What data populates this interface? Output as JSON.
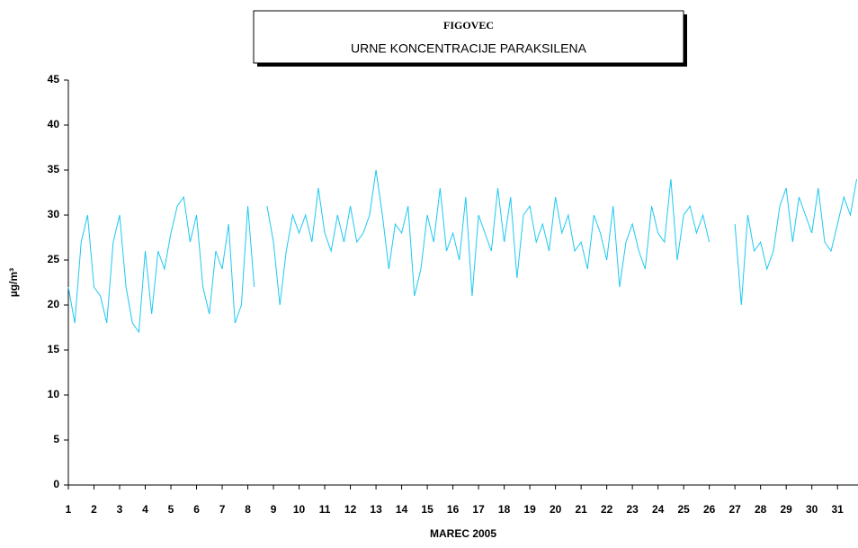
{
  "chart_data": {
    "type": "line",
    "title": "FIGOVEC",
    "subtitle": "URNE KONCENTRACIJE PARAKSILENA",
    "x_label": "MAREC 2005",
    "y_label": "µg/m³",
    "xlim": [
      1,
      31.8
    ],
    "ylim": [
      0,
      45
    ],
    "xticks": [
      1,
      2,
      3,
      4,
      5,
      6,
      7,
      8,
      9,
      10,
      11,
      12,
      13,
      14,
      15,
      16,
      17,
      18,
      19,
      20,
      21,
      22,
      23,
      24,
      25,
      26,
      27,
      28,
      29,
      30,
      31
    ],
    "yticks": [
      0,
      5,
      10,
      15,
      20,
      25,
      30,
      35,
      40,
      45
    ],
    "x": [
      1,
      1.25,
      1.5,
      1.75,
      2,
      2.25,
      2.5,
      2.75,
      3,
      3.25,
      3.5,
      3.75,
      4,
      4.25,
      4.5,
      4.75,
      5,
      5.25,
      5.5,
      5.75,
      6,
      6.25,
      6.5,
      6.75,
      7,
      7.25,
      7.5,
      7.75,
      8,
      8.25,
      8.5,
      8.75,
      9,
      9.25,
      9.5,
      9.75,
      10,
      10.25,
      10.5,
      10.75,
      11,
      11.25,
      11.5,
      11.75,
      12,
      12.25,
      12.5,
      12.75,
      13,
      13.25,
      13.5,
      13.75,
      14,
      14.25,
      14.5,
      14.75,
      15,
      15.25,
      15.5,
      15.75,
      16,
      16.25,
      16.5,
      16.75,
      17,
      17.25,
      17.5,
      17.75,
      18,
      18.25,
      18.5,
      18.75,
      19,
      19.25,
      19.5,
      19.75,
      20,
      20.25,
      20.5,
      20.75,
      21,
      21.25,
      21.5,
      21.75,
      22,
      22.25,
      22.5,
      22.75,
      23,
      23.25,
      23.5,
      23.75,
      24,
      24.25,
      24.5,
      24.75,
      25,
      25.25,
      25.5,
      25.75,
      26,
      26.25,
      26.5,
      26.75,
      27,
      27.25,
      27.5,
      27.75,
      28,
      28.25,
      28.5,
      28.75,
      29,
      29.25,
      29.5,
      29.75,
      30,
      30.25,
      30.5,
      30.75,
      31,
      31.25,
      31.5,
      31.75
    ],
    "series": [
      {
        "name": "paraksilen",
        "color": "#1ec8f0",
        "values": [
          22,
          18,
          27,
          30,
          22,
          21,
          18,
          27,
          30,
          22,
          18,
          17,
          26,
          19,
          26,
          24,
          28,
          31,
          32,
          27,
          30,
          22,
          19,
          26,
          24,
          29,
          18,
          20,
          31,
          22,
          null,
          31,
          27,
          20,
          26,
          30,
          28,
          30,
          27,
          33,
          28,
          26,
          30,
          27,
          31,
          27,
          28,
          30,
          35,
          30,
          24,
          29,
          28,
          31,
          21,
          24,
          30,
          27,
          33,
          26,
          28,
          25,
          32,
          21,
          30,
          28,
          26,
          33,
          27,
          32,
          23,
          30,
          31,
          27,
          29,
          26,
          32,
          28,
          30,
          26,
          27,
          24,
          30,
          28,
          25,
          31,
          22,
          27,
          29,
          26,
          24,
          31,
          28,
          27,
          34,
          25,
          30,
          31,
          28,
          30,
          27,
          null,
          null,
          null,
          29,
          20,
          30,
          26,
          27,
          24,
          26,
          31,
          33,
          27,
          32,
          30,
          28,
          33,
          27,
          26,
          29,
          32,
          30,
          34
        ]
      }
    ]
  }
}
